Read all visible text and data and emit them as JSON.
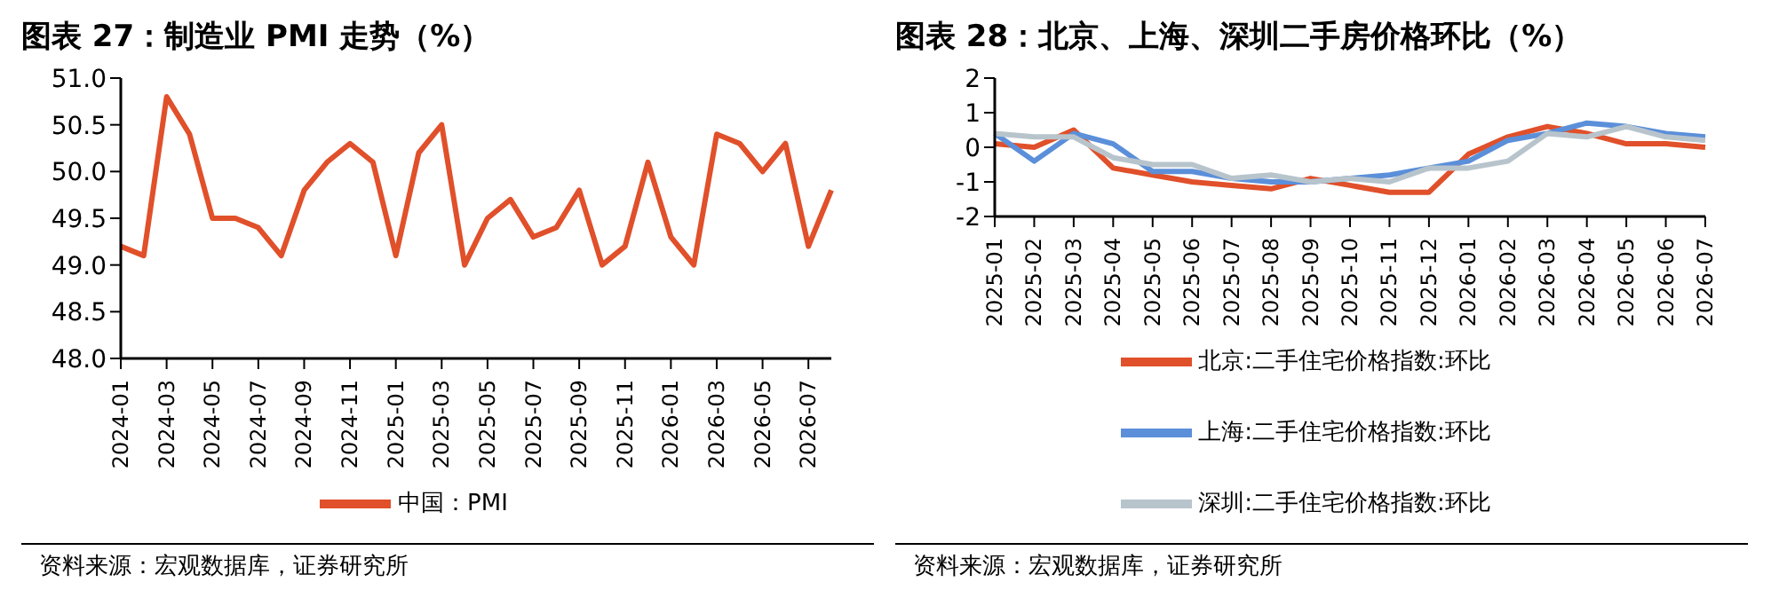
{
  "chart_data": [
    {
      "type": "line",
      "title": "图表 27：制造业 PMI 走势（%）",
      "categories": [
        "2024-01",
        null,
        "2024-03",
        null,
        "2024-05",
        null,
        "2024-07",
        null,
        "2024-09",
        null,
        "2024-11",
        null,
        "2025-01",
        null,
        "2025-03",
        null,
        "2025-05",
        null,
        "2025-07",
        null,
        "2025-09",
        null,
        "2025-11",
        null,
        "2026-01",
        null,
        "2026-03",
        null,
        "2026-05",
        null,
        "2026-07",
        null
      ],
      "series": [
        {
          "name": "中国：PMI",
          "color": "#e0502a",
          "values": [
            49.2,
            49.1,
            50.8,
            50.4,
            49.5,
            49.5,
            49.4,
            49.1,
            49.8,
            50.1,
            50.3,
            50.1,
            49.1,
            50.2,
            50.5,
            49.0,
            49.5,
            49.7,
            49.3,
            49.4,
            49.8,
            49.0,
            49.2,
            50.1,
            49.3,
            49.0,
            50.4,
            50.3,
            50.0,
            50.3,
            49.2,
            49.8
          ]
        }
      ],
      "ylim": [
        48,
        51
      ],
      "yticks": [
        {
          "value": 48,
          "label": "48.0"
        },
        {
          "value": 48.5,
          "label": "48.5"
        },
        {
          "value": 49,
          "label": "49.0"
        },
        {
          "value": 49.5,
          "label": "49.5"
        },
        {
          "value": 50,
          "label": "50.0"
        },
        {
          "value": 50.5,
          "label": "50.5"
        },
        {
          "value": 51,
          "label": "51.0"
        }
      ],
      "grid": false,
      "legend": "bottom",
      "marker": "none",
      "line_style": "solid",
      "annotations": [
        "资料来源：宏观数据库，证券研究所"
      ]
    },
    {
      "type": "line",
      "title": "图表 28：北京、上海、深圳二手房价格环比（%）",
      "categories": [
        "2025-01",
        "2025-02",
        "2025-03",
        "2025-04",
        "2025-05",
        "2025-06",
        "2025-07",
        "2025-08",
        "2025-09",
        "2025-10",
        "2025-11",
        "2025-12",
        "2026-01",
        "2026-02",
        "2026-03",
        "2026-04",
        "2026-05",
        "2026-06",
        "2026-07"
      ],
      "series": [
        {
          "name": "北京:二手住宅价格指数:环比",
          "color": "#e0502a",
          "values": [
            0.1,
            0.0,
            0.5,
            -0.6,
            -0.8,
            -1.0,
            -1.1,
            -1.2,
            -0.9,
            -1.1,
            -1.3,
            -1.3,
            -0.2,
            0.3,
            0.6,
            0.4,
            0.1,
            0.1,
            0.0
          ]
        },
        {
          "name": "上海:二手住宅价格指数:环比",
          "color": "#5b8fd9",
          "values": [
            0.4,
            -0.4,
            0.4,
            0.1,
            -0.7,
            -0.7,
            -0.9,
            -1.0,
            -1.0,
            -0.9,
            -0.8,
            -0.6,
            -0.4,
            0.2,
            0.4,
            0.7,
            0.6,
            0.4,
            0.3
          ]
        },
        {
          "name": "深圳:二手住宅价格指数:环比",
          "color": "#b8c4cc",
          "values": [
            0.4,
            0.3,
            0.3,
            -0.3,
            -0.5,
            -0.5,
            -0.9,
            -0.8,
            -1.0,
            -0.9,
            -1.0,
            -0.6,
            -0.6,
            -0.4,
            0.4,
            0.3,
            0.6,
            0.3,
            0.2
          ]
        }
      ],
      "ylim": [
        -2,
        2
      ],
      "yticks": [
        -2,
        -1,
        0,
        1,
        2
      ],
      "grid": false,
      "legend": "bottom",
      "marker": "none",
      "line_style": "solid",
      "annotations": [
        "资料来源：宏观数据库，证券研究所"
      ]
    }
  ]
}
